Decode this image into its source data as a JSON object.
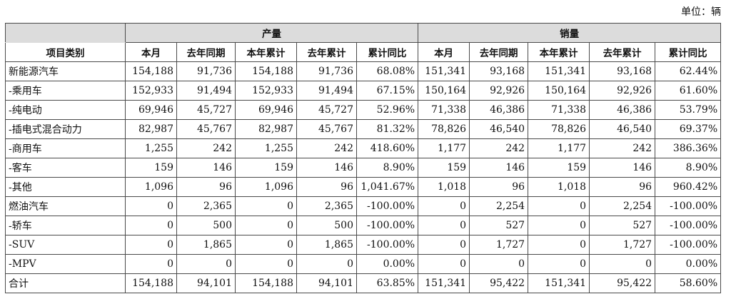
{
  "unit_label": "单位：辆",
  "groups": {
    "production": "产量",
    "sales": "销量"
  },
  "columns": {
    "item": "项目类别",
    "sub": [
      "本月",
      "去年同期",
      "本年累计",
      "去年累计",
      "累计同比"
    ]
  },
  "rows": [
    {
      "label": "新能源汽车",
      "values": [
        "154,188",
        "91,736",
        "154,188",
        "91,736",
        "68.08%",
        "151,341",
        "93,168",
        "151,341",
        "93,168",
        "62.44%"
      ]
    },
    {
      "label": "-乘用车",
      "values": [
        "152,933",
        "91,494",
        "152,933",
        "91,494",
        "67.15%",
        "150,164",
        "92,926",
        "150,164",
        "92,926",
        "61.60%"
      ]
    },
    {
      "label": "-纯电动",
      "values": [
        "69,946",
        "45,727",
        "69,946",
        "45,727",
        "52.96%",
        "71,338",
        "46,386",
        "71,338",
        "46,386",
        "53.79%"
      ]
    },
    {
      "label": "-插电式混合动力",
      "values": [
        "82,987",
        "45,767",
        "82,987",
        "45,767",
        "81.32%",
        "78,826",
        "46,540",
        "78,826",
        "46,540",
        "69.37%"
      ]
    },
    {
      "label": "-商用车",
      "values": [
        "1,255",
        "242",
        "1,255",
        "242",
        "418.60%",
        "1,177",
        "242",
        "1,177",
        "242",
        "386.36%"
      ]
    },
    {
      "label": "-客车",
      "values": [
        "159",
        "146",
        "159",
        "146",
        "8.90%",
        "159",
        "146",
        "159",
        "146",
        "8.90%"
      ]
    },
    {
      "label": "-其他",
      "values": [
        "1,096",
        "96",
        "1,096",
        "96",
        "1,041.67%",
        "1,018",
        "96",
        "1,018",
        "96",
        "960.42%"
      ]
    },
    {
      "label": "燃油汽车",
      "values": [
        "0",
        "2,365",
        "0",
        "2,365",
        "-100.00%",
        "0",
        "2,254",
        "0",
        "2,254",
        "-100.00%"
      ]
    },
    {
      "label": "-轿车",
      "values": [
        "0",
        "500",
        "0",
        "500",
        "-100.00%",
        "0",
        "527",
        "0",
        "527",
        "-100.00%"
      ]
    },
    {
      "label": "-SUV",
      "values": [
        "0",
        "1,865",
        "0",
        "1,865",
        "-100.00%",
        "0",
        "1,727",
        "0",
        "1,727",
        "-100.00%"
      ]
    },
    {
      "label": "-MPV",
      "values": [
        "0",
        "0",
        "0",
        "0",
        "0.00%",
        "0",
        "0",
        "0",
        "0",
        "0.00%"
      ]
    },
    {
      "label": "合计",
      "values": [
        "154,188",
        "94,101",
        "154,188",
        "94,101",
        "63.85%",
        "151,341",
        "95,422",
        "151,341",
        "95,422",
        "58.60%"
      ]
    }
  ]
}
